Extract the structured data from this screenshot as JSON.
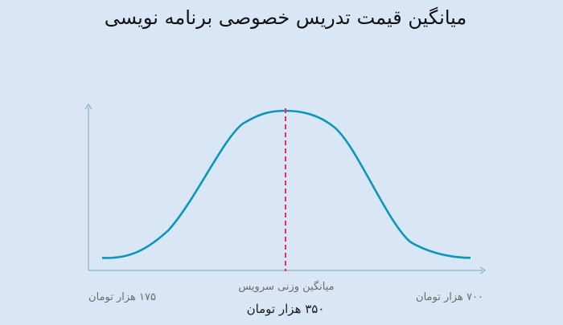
{
  "chart_data": {
    "type": "line",
    "title": "میانگین قیمت تدریس خصوصی برنامه نویسی",
    "center_caption": "میانگین وزنی سرویس",
    "labels": {
      "min": "۱۷۵ هزار تومان",
      "mean": "۳۵۰ هزار تومان",
      "max": "۷۰۰ هزار تومان"
    },
    "x": [
      175,
      350,
      700
    ],
    "series": [
      {
        "values": [
          0.03,
          1.0,
          0.03
        ]
      }
    ],
    "mean_value": 350,
    "colors": {
      "curve": "#0b97b8",
      "mean_line": "#e72d63",
      "axis": "#8fb1c2",
      "background": "#d8e6f6"
    }
  }
}
